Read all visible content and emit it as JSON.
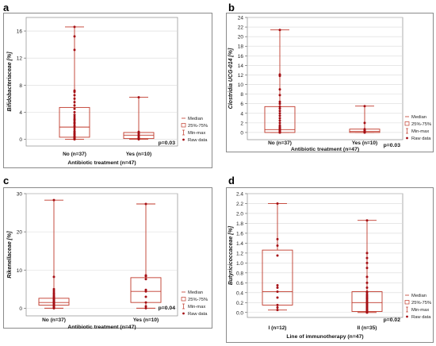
{
  "panels": [
    {
      "letter": "a"
    },
    {
      "letter": "b"
    },
    {
      "letter": "c"
    },
    {
      "letter": "d"
    }
  ],
  "legend": {
    "median": "Median",
    "box": "25%-75%",
    "minmax": "Min-max",
    "raw": "Raw data"
  },
  "colors": {
    "box": "#c0392b",
    "points": "#a50f15",
    "grid": "#d9d9d9",
    "frame": "#8a8a8a"
  },
  "chart_data": [
    {
      "type": "box",
      "ylabel": "Bifidobacteriaceae [%]",
      "xlabel": "Antibiotic treatment (n=47)",
      "ylim": [
        -1,
        18
      ],
      "yticks": [
        0,
        4,
        8,
        12,
        16
      ],
      "grid": true,
      "legend_position": "right",
      "p_value": "p=0.03",
      "groups": [
        {
          "name": "No (n=37)",
          "min": 0,
          "q1": 0.3,
          "median": 1.8,
          "q3": 4.7,
          "max": 16.6,
          "points": [
            0,
            0,
            0.05,
            0.1,
            0.1,
            0.2,
            0.2,
            0.3,
            0.4,
            0.5,
            0.7,
            0.8,
            1.0,
            1.2,
            1.5,
            1.8,
            2.0,
            2.3,
            2.5,
            2.8,
            3.0,
            3.3,
            3.6,
            4.0,
            4.5,
            5.0,
            5.5,
            6.0,
            6.5,
            7.0,
            7.2,
            13.2,
            15.2,
            16.6
          ]
        },
        {
          "name": "Yes (n=10)",
          "min": 0,
          "q1": 0.1,
          "median": 0.6,
          "q3": 1.0,
          "max": 6.2,
          "points": [
            0,
            0.05,
            0.1,
            0.2,
            0.4,
            0.6,
            0.8,
            1.0,
            1.1,
            6.2
          ]
        }
      ]
    },
    {
      "type": "box",
      "ylabel": "Clostridia UCG-014 [%]",
      "xlabel": "Antibiotic treatment (n=47)",
      "ylim": [
        -1.5,
        24
      ],
      "yticks": [
        0,
        2,
        4,
        6,
        8,
        10,
        12,
        14,
        16,
        18,
        20,
        22,
        24
      ],
      "grid": true,
      "legend_position": "right",
      "p_value": "p=0.03",
      "groups": [
        {
          "name": "No (n=37)",
          "min": 0,
          "q1": 0,
          "median": 0.6,
          "q3": 5.4,
          "max": 21.4,
          "points": [
            0,
            0,
            0,
            0,
            0,
            0.1,
            0.2,
            0.3,
            0.5,
            0.6,
            0.8,
            1.0,
            1.2,
            1.5,
            2.0,
            2.5,
            3.0,
            3.5,
            4.0,
            4.5,
            5.0,
            5.4,
            6.0,
            6.4,
            7.8,
            9.0,
            11.8,
            12.1,
            21.4
          ]
        },
        {
          "name": "Yes (n=10)",
          "min": 0,
          "q1": 0,
          "median": 0.2,
          "q3": 0.7,
          "max": 5.5,
          "points": [
            0,
            0,
            0,
            0.1,
            0.2,
            0.3,
            0.5,
            0.7,
            2.0,
            5.5
          ]
        }
      ]
    },
    {
      "type": "box",
      "ylabel": "Rikenellaceae [%]",
      "xlabel": "Antibiotic treatment (n=47)",
      "ylim": [
        -2,
        30
      ],
      "yticks": [
        0,
        10,
        20,
        30
      ],
      "grid": true,
      "legend_position": "right",
      "p_value": "p=0.04",
      "groups": [
        {
          "name": "No (n=37)",
          "min": 0,
          "q1": 0.8,
          "median": 1.5,
          "q3": 2.6,
          "max": 28.3,
          "points": [
            0,
            0,
            0.2,
            0.3,
            0.5,
            0.7,
            0.8,
            1.0,
            1.1,
            1.3,
            1.5,
            1.6,
            1.8,
            2.0,
            2.2,
            2.4,
            2.6,
            2.9,
            3.2,
            3.6,
            4.0,
            4.5,
            5.0,
            8.2,
            28.3
          ]
        },
        {
          "name": "Yes (n=10)",
          "min": 0,
          "q1": 1.5,
          "median": 4.4,
          "q3": 8.0,
          "max": 27.3,
          "points": [
            0,
            0.5,
            1.5,
            3.0,
            4.4,
            4.8,
            7.6,
            8.4,
            8.6,
            27.3
          ]
        }
      ]
    },
    {
      "type": "box",
      "ylabel": "Butyricicoccaceae [%]",
      "xlabel": "Line of immunotherapy (n=47)",
      "ylim": [
        -0.1,
        2.4
      ],
      "yticks": [
        0.0,
        0.2,
        0.4,
        0.6,
        0.8,
        1.0,
        1.2,
        1.4,
        1.6,
        1.8,
        2.0,
        2.2,
        2.4
      ],
      "grid": true,
      "legend_position": "right",
      "p_value": "p=0.02",
      "groups": [
        {
          "name": "I (n=12)",
          "min": 0.05,
          "q1": 0.15,
          "median": 0.42,
          "q3": 1.26,
          "max": 2.2,
          "points": [
            0.05,
            0.1,
            0.15,
            0.3,
            0.42,
            0.5,
            0.55,
            1.15,
            1.35,
            1.48,
            2.2
          ]
        },
        {
          "name": "II (n=35)",
          "min": 0,
          "q1": 0.02,
          "median": 0.2,
          "q3": 0.42,
          "max": 1.86,
          "points": [
            0,
            0,
            0,
            0,
            0.01,
            0.02,
            0.03,
            0.05,
            0.06,
            0.08,
            0.1,
            0.12,
            0.14,
            0.16,
            0.18,
            0.2,
            0.22,
            0.25,
            0.28,
            0.3,
            0.33,
            0.36,
            0.4,
            0.42,
            0.5,
            0.6,
            0.72,
            0.9,
            1.0,
            1.1,
            1.2,
            1.86
          ]
        }
      ]
    }
  ]
}
